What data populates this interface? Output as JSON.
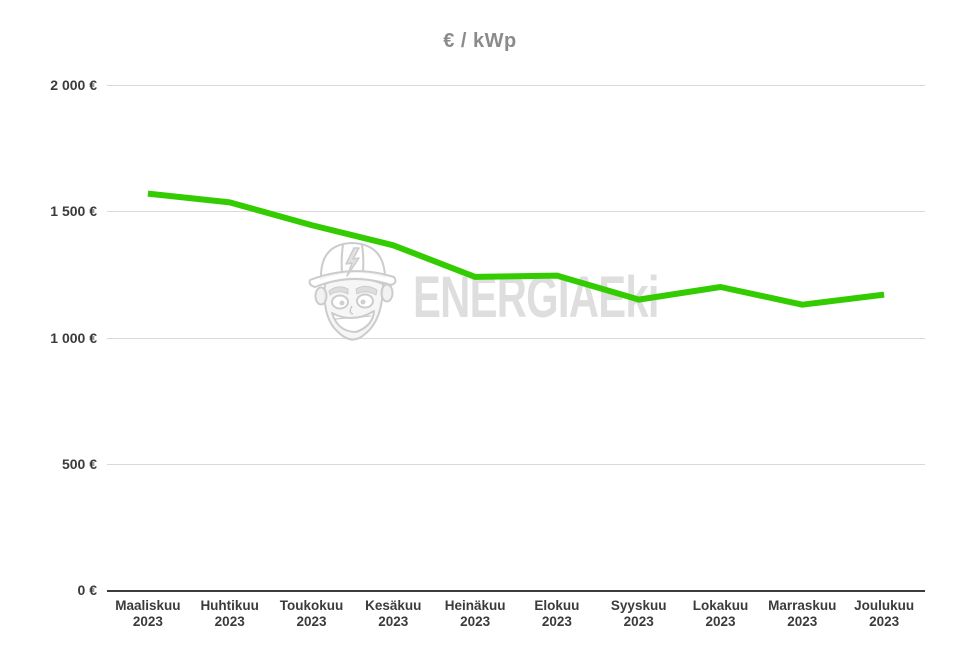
{
  "watermark": {
    "text": "ENERGIAEki",
    "mascot_icon": "construction-worker-hard-hat-lightning"
  },
  "colors": {
    "line": "#33cc00",
    "title_text": "#8b8b8b",
    "axis_text": "#3b3b3b",
    "gridline": "#d9d9d9",
    "baseline": "#3b3b3b",
    "watermark_text": "#dedede"
  },
  "chart_data": {
    "type": "line",
    "title": "€ / kWp",
    "categories": [
      {
        "month": "Maaliskuu",
        "year": "2023"
      },
      {
        "month": "Huhtikuu",
        "year": "2023"
      },
      {
        "month": "Toukokuu",
        "year": "2023"
      },
      {
        "month": "Kesäkuu",
        "year": "2023"
      },
      {
        "month": "Heinäkuu",
        "year": "2023"
      },
      {
        "month": "Elokuu",
        "year": "2023"
      },
      {
        "month": "Syyskuu",
        "year": "2023"
      },
      {
        "month": "Lokakuu",
        "year": "2023"
      },
      {
        "month": "Marraskuu",
        "year": "2023"
      },
      {
        "month": "Joulukuu",
        "year": "2023"
      }
    ],
    "series": [
      {
        "name": "€ / kWp",
        "values": [
          1570,
          1535,
          1445,
          1365,
          1240,
          1245,
          1150,
          1200,
          1130,
          1170
        ]
      }
    ],
    "xlabel": "",
    "ylabel": "",
    "ylim": [
      0,
      2000
    ],
    "yticks": [
      {
        "value": 0,
        "label": "0 €"
      },
      {
        "value": 500,
        "label": "500 €"
      },
      {
        "value": 1000,
        "label": "1 000 €"
      },
      {
        "value": 1500,
        "label": "1 500 €"
      },
      {
        "value": 2000,
        "label": "2 000 €"
      }
    ],
    "grid": true,
    "legend": "none",
    "line_color": "#33cc00",
    "line_width": 6
  }
}
